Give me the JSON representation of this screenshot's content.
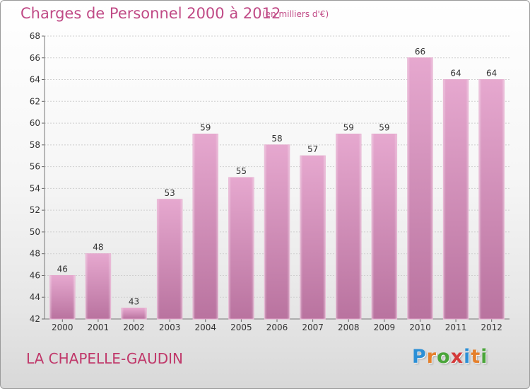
{
  "chart_data": {
    "type": "bar",
    "title": "Charges de Personnel 2000 à 2012",
    "subtitle": "(en milliers d'€)",
    "categories": [
      "2000",
      "2001",
      "2002",
      "2003",
      "2004",
      "2005",
      "2006",
      "2007",
      "2008",
      "2009",
      "2010",
      "2011",
      "2012"
    ],
    "values": [
      46,
      48,
      43,
      53,
      59,
      55,
      58,
      57,
      59,
      59,
      66,
      64,
      64
    ],
    "ylim": [
      42,
      68
    ],
    "yticks": [
      42,
      44,
      46,
      48,
      50,
      52,
      54,
      56,
      58,
      60,
      62,
      64,
      66,
      68
    ],
    "grid": true,
    "bar_color": "#d98ab8"
  },
  "commune": "LA CHAPELLE-GAUDIN",
  "logo": {
    "letters": [
      "P",
      "r",
      "o",
      "x",
      "i",
      "t",
      "i"
    ],
    "colors": [
      "#2b8fd6",
      "#e5802c",
      "#4aa53a",
      "#d43a3a",
      "#2b8fd6",
      "#e5802c",
      "#4aa53a"
    ]
  }
}
